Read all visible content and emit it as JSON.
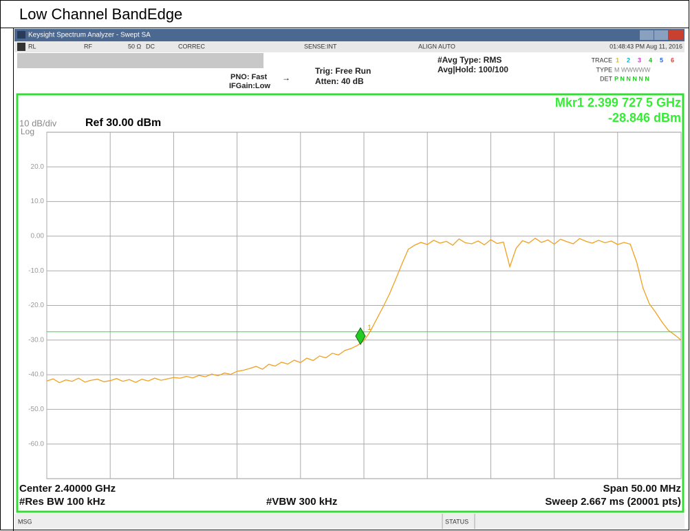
{
  "title": "Low Channel BandEdge",
  "window": {
    "title": "Keysight Spectrum Analyzer - Swept SA",
    "toolbar": [
      "RL",
      "RF",
      "50 Ω",
      "DC",
      "CORREC",
      "SENSE:INT",
      "ALIGN AUTO",
      "01:48:43 PM Aug 11, 2016"
    ],
    "settings": [
      "PNO: Fast",
      "IFGain:Low",
      "Trig: Free Run",
      "Atten: 40 dB",
      "#Avg Type: RMS",
      "Avg|Hold: 100/100"
    ],
    "trace_panel": {
      "trace_label": "TRACE",
      "traces": [
        "1",
        "2",
        "3",
        "4",
        "5",
        "6"
      ],
      "type_label": "TYPE",
      "type": "M WWWWW",
      "det_label": "DET",
      "det": "P N N N N N"
    }
  },
  "status_bar": [
    "MSG",
    "STATUS"
  ],
  "chart_data": {
    "type": "line",
    "scale_label": "10 dB/div",
    "scale_type": "Log",
    "ref_level": "Ref 30.00 dBm",
    "marker_readout": [
      "Mkr1 2.399 727 5 GHz",
      "-28.846 dBm"
    ],
    "footer": [
      "Center 2.40000 GHz",
      "Span 50.00 MHz",
      "#Res BW 100 kHz",
      "#VBW 300 kHz",
      "Sweep  2.667 ms (20001 pts)"
    ],
    "xlim": [
      2.375,
      2.425
    ],
    "xticks": [
      2.375,
      2.38,
      2.385,
      2.39,
      2.395,
      2.4,
      2.405,
      2.41,
      2.415,
      2.42,
      2.425
    ],
    "ylim": [
      -70,
      30
    ],
    "yticks": [
      {
        "value": 20,
        "label": "20.0"
      },
      {
        "value": 10,
        "label": "10.0"
      },
      {
        "value": 0,
        "label": "0.00"
      },
      {
        "value": -10,
        "label": "-10.0"
      },
      {
        "value": -20,
        "label": "-20.0"
      },
      {
        "value": -30,
        "label": "-30.0"
      },
      {
        "value": -40,
        "label": "-40.0"
      },
      {
        "value": -50,
        "label": "-50.0"
      },
      {
        "value": -60,
        "label": "-60.0"
      }
    ],
    "grid": true,
    "color": "#f0a020",
    "x": [
      2.375,
      2.3755,
      2.376,
      2.3765,
      2.377,
      2.3775,
      2.378,
      2.3785,
      2.379,
      2.3795,
      2.38,
      2.3805,
      2.381,
      2.3815,
      2.382,
      2.3825,
      2.383,
      2.3835,
      2.384,
      2.3845,
      2.385,
      2.3855,
      2.386,
      2.3865,
      2.387,
      2.3875,
      2.388,
      2.3885,
      2.389,
      2.3895,
      2.39,
      2.3905,
      2.391,
      2.3915,
      2.392,
      2.3925,
      2.393,
      2.3935,
      2.394,
      2.3945,
      2.395,
      2.3955,
      2.396,
      2.3965,
      2.397,
      2.3975,
      2.398,
      2.3985,
      2.399,
      2.3995,
      2.4,
      2.4005,
      2.401,
      2.4015,
      2.402,
      2.4025,
      2.403,
      2.4035,
      2.404,
      2.4045,
      2.405,
      2.4055,
      2.406,
      2.4065,
      2.407,
      2.4075,
      2.408,
      2.4085,
      2.409,
      2.4095,
      2.41,
      2.4105,
      2.411,
      2.4115,
      2.412,
      2.4125,
      2.413,
      2.4135,
      2.414,
      2.4145,
      2.415,
      2.4155,
      2.416,
      2.4165,
      2.417,
      2.4175,
      2.418,
      2.4185,
      2.419,
      2.4195,
      2.42,
      2.4205,
      2.421,
      2.4215,
      2.422,
      2.4225,
      2.423,
      2.4235,
      2.424,
      2.4245,
      2.425
    ],
    "values": [
      -41.8,
      -41.2,
      -42.3,
      -41.5,
      -41.9,
      -41.0,
      -42.1,
      -41.6,
      -41.3,
      -42.0,
      -41.7,
      -41.1,
      -41.9,
      -41.4,
      -42.2,
      -41.3,
      -41.8,
      -41.0,
      -41.6,
      -41.2,
      -40.8,
      -41.0,
      -40.5,
      -40.9,
      -40.2,
      -40.6,
      -39.8,
      -40.3,
      -39.5,
      -39.9,
      -39.0,
      -38.7,
      -38.2,
      -37.6,
      -38.4,
      -37.0,
      -37.5,
      -36.4,
      -36.9,
      -35.8,
      -36.5,
      -35.2,
      -35.9,
      -34.6,
      -35.1,
      -33.8,
      -34.3,
      -33.0,
      -32.4,
      -31.5,
      -30.2,
      -27.5,
      -24.0,
      -20.5,
      -16.8,
      -12.5,
      -8.0,
      -3.8,
      -2.6,
      -1.8,
      -2.4,
      -1.2,
      -2.0,
      -1.5,
      -2.6,
      -0.8,
      -1.9,
      -2.2,
      -1.4,
      -2.5,
      -1.0,
      -2.1,
      -1.7,
      -8.8,
      -3.5,
      -1.3,
      -2.0,
      -0.6,
      -1.8,
      -1.1,
      -2.3,
      -0.9,
      -1.6,
      -2.2,
      -0.7,
      -1.5,
      -2.0,
      -1.2,
      -1.9,
      -1.4,
      -2.4,
      -1.8,
      -2.3,
      -7.5,
      -15.0,
      -19.5,
      -22.0,
      -24.8,
      -27.2,
      -28.5,
      -30.0
    ],
    "markers": [
      {
        "label": "1",
        "x": 2.3997275,
        "y": -28.846
      }
    ],
    "display_line": -27.6
  }
}
